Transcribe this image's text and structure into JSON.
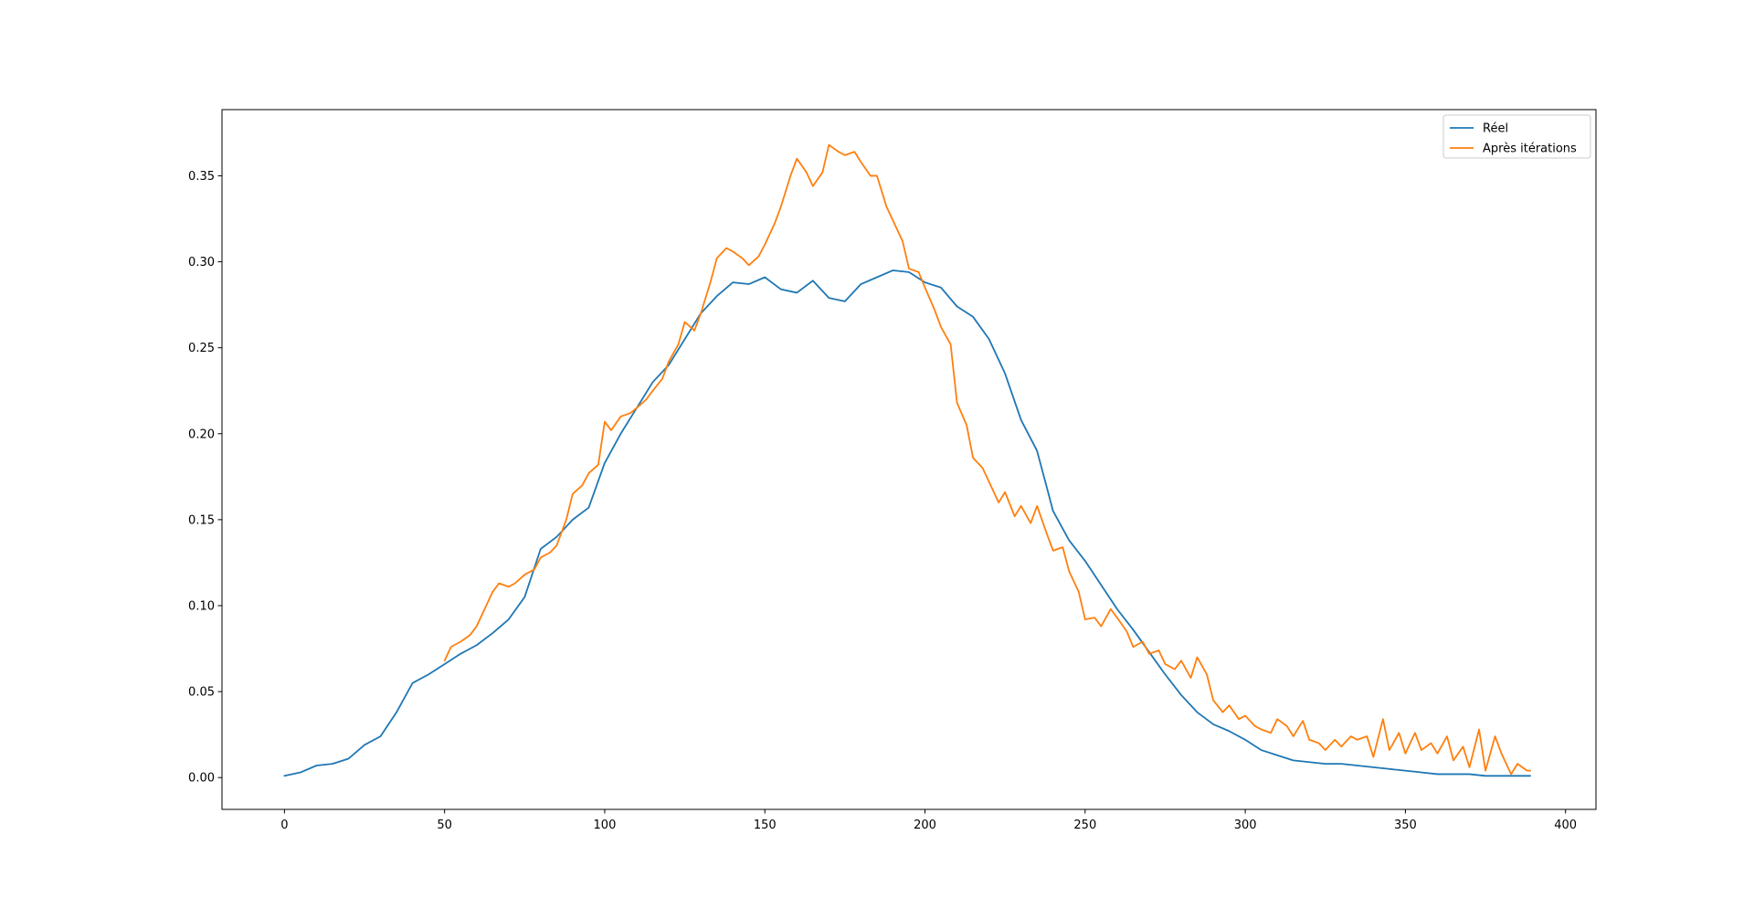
{
  "chart_data": {
    "type": "line",
    "title": "",
    "xlabel": "",
    "ylabel": "",
    "xlim": [
      -19.5,
      409.5
    ],
    "ylim": [
      -0.0185,
      0.3885
    ],
    "xticks": [
      0,
      50,
      100,
      150,
      200,
      250,
      300,
      350,
      400
    ],
    "yticks": [
      0.0,
      0.05,
      0.1,
      0.15,
      0.2,
      0.25,
      0.3,
      0.35
    ],
    "ytick_labels": [
      "0.00",
      "0.05",
      "0.10",
      "0.15",
      "0.20",
      "0.25",
      "0.30",
      "0.35"
    ],
    "grid": false,
    "legend_position": "top-right",
    "series": [
      {
        "name": "Réel",
        "color": "#1f77b4",
        "x": [
          0,
          5,
          10,
          15,
          20,
          25,
          30,
          35,
          40,
          45,
          50,
          55,
          60,
          65,
          70,
          75,
          80,
          85,
          90,
          95,
          100,
          105,
          110,
          115,
          120,
          125,
          130,
          135,
          140,
          145,
          150,
          155,
          160,
          165,
          170,
          175,
          180,
          185,
          190,
          195,
          200,
          205,
          210,
          215,
          220,
          225,
          230,
          235,
          240,
          245,
          250,
          255,
          260,
          265,
          270,
          275,
          280,
          285,
          290,
          295,
          300,
          305,
          310,
          315,
          320,
          325,
          330,
          335,
          340,
          345,
          350,
          355,
          360,
          365,
          370,
          375,
          380,
          385,
          389
        ],
        "values": [
          0.001,
          0.003,
          0.007,
          0.008,
          0.011,
          0.019,
          0.024,
          0.038,
          0.055,
          0.06,
          0.066,
          0.072,
          0.077,
          0.084,
          0.092,
          0.105,
          0.133,
          0.14,
          0.15,
          0.157,
          0.183,
          0.2,
          0.215,
          0.23,
          0.24,
          0.255,
          0.27,
          0.28,
          0.288,
          0.287,
          0.291,
          0.284,
          0.282,
          0.289,
          0.279,
          0.277,
          0.287,
          0.291,
          0.295,
          0.294,
          0.288,
          0.285,
          0.274,
          0.268,
          0.255,
          0.235,
          0.208,
          0.19,
          0.155,
          0.138,
          0.126,
          0.112,
          0.098,
          0.086,
          0.073,
          0.06,
          0.048,
          0.038,
          0.031,
          0.027,
          0.022,
          0.016,
          0.013,
          0.01,
          0.009,
          0.008,
          0.008,
          0.007,
          0.006,
          0.005,
          0.004,
          0.003,
          0.002,
          0.002,
          0.002,
          0.001,
          0.001,
          0.001,
          0.001
        ]
      },
      {
        "name": "Après itérations",
        "color": "#ff7f0e",
        "x": [
          50,
          52,
          55,
          58,
          60,
          63,
          65,
          67,
          70,
          72,
          75,
          78,
          80,
          83,
          85,
          88,
          90,
          93,
          95,
          98,
          100,
          102,
          105,
          108,
          110,
          113,
          115,
          118,
          120,
          123,
          125,
          128,
          130,
          133,
          135,
          138,
          140,
          143,
          145,
          148,
          150,
          153,
          155,
          158,
          160,
          163,
          165,
          168,
          170,
          173,
          175,
          178,
          180,
          183,
          185,
          188,
          190,
          193,
          195,
          198,
          200,
          203,
          205,
          208,
          210,
          213,
          215,
          218,
          220,
          223,
          225,
          228,
          230,
          233,
          235,
          238,
          240,
          243,
          245,
          248,
          250,
          253,
          255,
          258,
          260,
          263,
          265,
          268,
          270,
          273,
          275,
          278,
          280,
          283,
          285,
          288,
          290,
          293,
          295,
          298,
          300,
          303,
          305,
          308,
          310,
          313,
          315,
          318,
          320,
          323,
          325,
          328,
          330,
          333,
          335,
          338,
          340,
          343,
          345,
          348,
          350,
          353,
          355,
          358,
          360,
          363,
          365,
          368,
          370,
          373,
          375,
          378,
          380,
          383,
          385,
          388,
          389
        ],
        "values": [
          0.068,
          0.076,
          0.079,
          0.083,
          0.088,
          0.1,
          0.108,
          0.113,
          0.111,
          0.113,
          0.118,
          0.121,
          0.128,
          0.131,
          0.135,
          0.15,
          0.165,
          0.17,
          0.177,
          0.182,
          0.207,
          0.202,
          0.21,
          0.212,
          0.215,
          0.22,
          0.225,
          0.232,
          0.242,
          0.252,
          0.265,
          0.26,
          0.27,
          0.288,
          0.302,
          0.308,
          0.306,
          0.302,
          0.298,
          0.303,
          0.31,
          0.322,
          0.332,
          0.35,
          0.36,
          0.352,
          0.344,
          0.352,
          0.368,
          0.364,
          0.362,
          0.364,
          0.358,
          0.35,
          0.35,
          0.332,
          0.324,
          0.312,
          0.296,
          0.294,
          0.285,
          0.272,
          0.262,
          0.252,
          0.218,
          0.205,
          0.186,
          0.18,
          0.172,
          0.16,
          0.166,
          0.152,
          0.158,
          0.148,
          0.158,
          0.142,
          0.132,
          0.134,
          0.12,
          0.108,
          0.092,
          0.093,
          0.088,
          0.098,
          0.093,
          0.085,
          0.076,
          0.079,
          0.072,
          0.074,
          0.066,
          0.063,
          0.068,
          0.058,
          0.07,
          0.06,
          0.045,
          0.038,
          0.042,
          0.034,
          0.036,
          0.03,
          0.028,
          0.026,
          0.034,
          0.03,
          0.024,
          0.033,
          0.022,
          0.02,
          0.016,
          0.022,
          0.018,
          0.024,
          0.022,
          0.024,
          0.012,
          0.034,
          0.016,
          0.026,
          0.014,
          0.026,
          0.016,
          0.02,
          0.014,
          0.024,
          0.01,
          0.018,
          0.006,
          0.028,
          0.004,
          0.024,
          0.014,
          0.002,
          0.008,
          0.004,
          0.004
        ]
      }
    ]
  }
}
